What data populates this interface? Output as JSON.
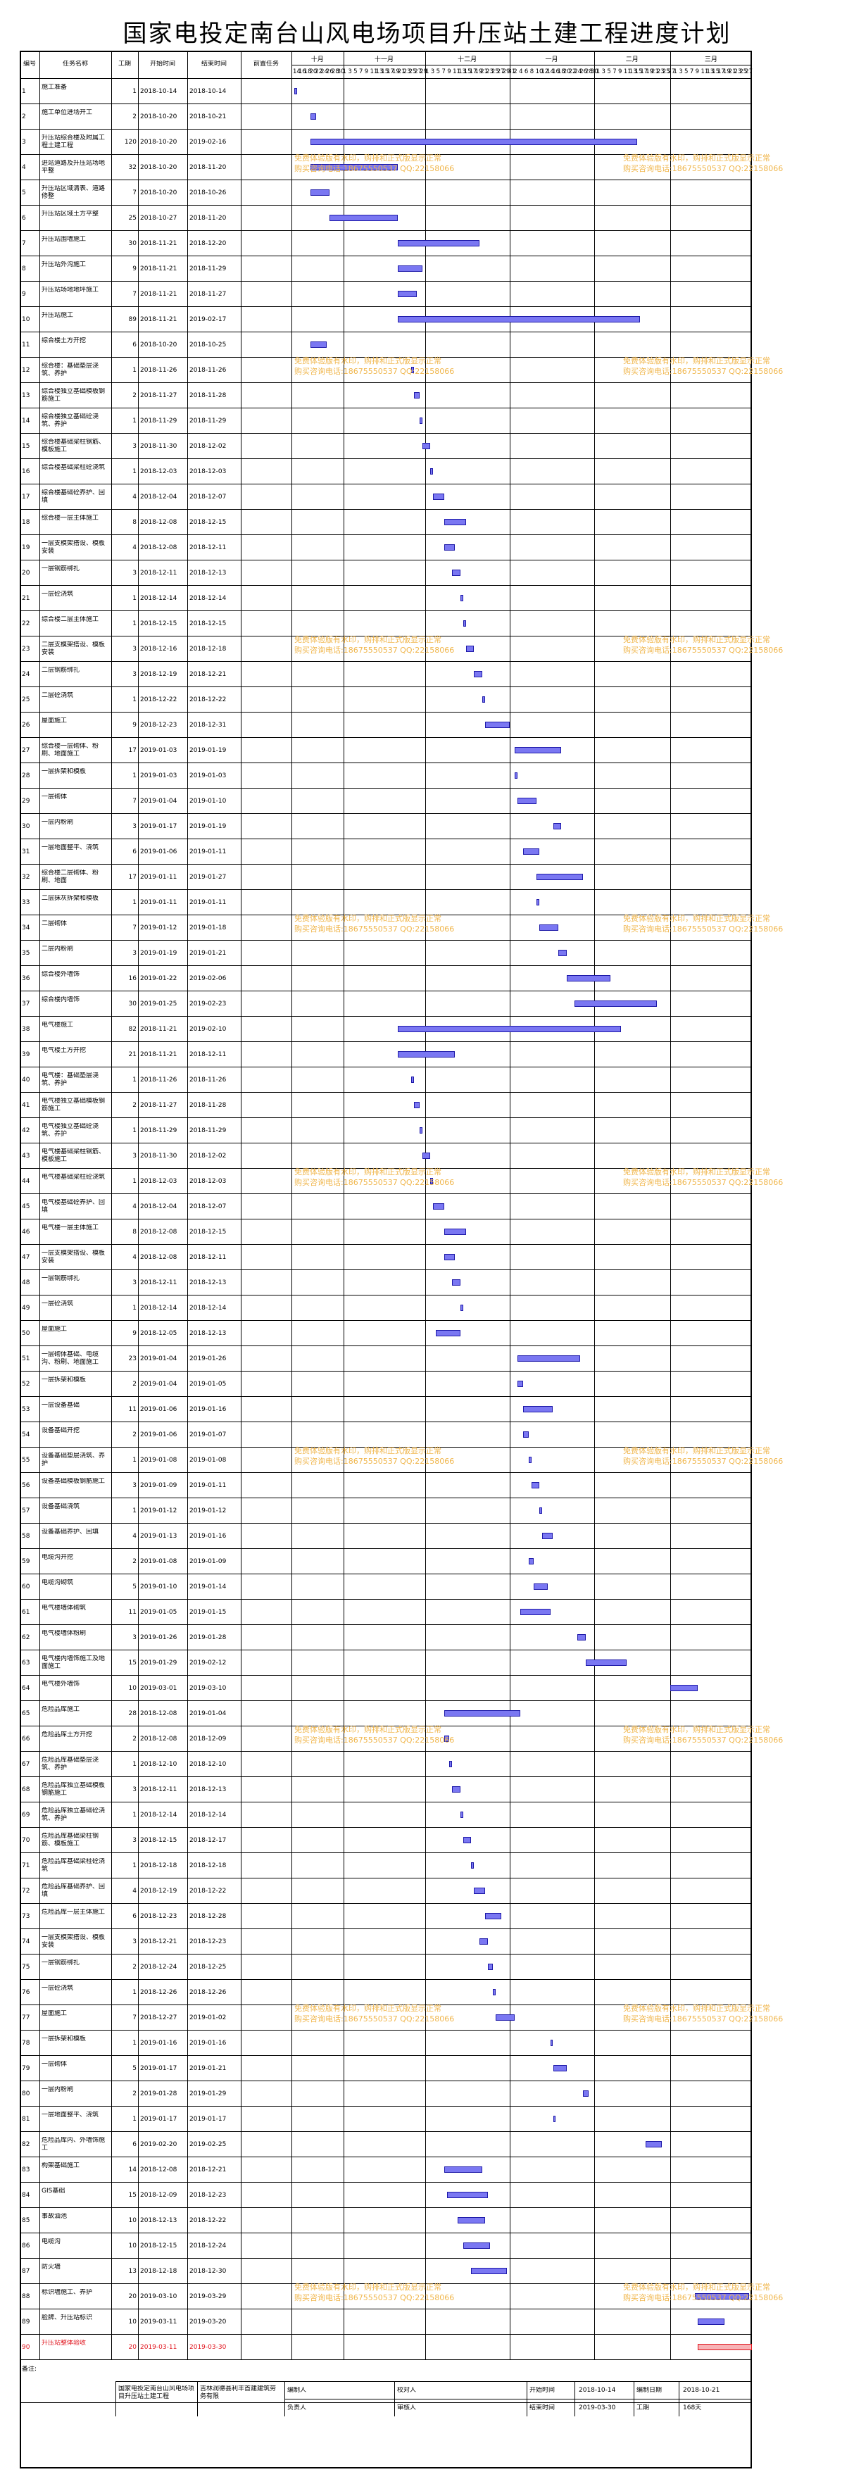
{
  "title": "国家电投定南台山风电场项目升压站土建工程进度计划",
  "headers": {
    "id": "编号",
    "name": "任务名称",
    "duration": "工期",
    "start": "开始时间",
    "end": "结束时间",
    "pred": "前置任务"
  },
  "timeline": {
    "months": [
      "十月",
      "十一月",
      "十二月",
      "一月",
      "二月",
      "三月"
    ],
    "days": [
      "14",
      "16",
      "18",
      "20",
      "22",
      "24",
      "26",
      "28",
      "30",
      "1",
      "3",
      "5",
      "7",
      "9",
      "11",
      "13",
      "15",
      "17",
      "19",
      "21",
      "23",
      "25",
      "27",
      "29",
      "1",
      "3",
      "5",
      "7",
      "9",
      "11",
      "13",
      "15",
      "17",
      "19",
      "21",
      "23",
      "25",
      "27",
      "29",
      "31",
      "2",
      "4",
      "6",
      "8",
      "10",
      "12",
      "14",
      "16",
      "18",
      "20",
      "22",
      "24",
      "26",
      "28",
      "30",
      "1",
      "3",
      "5",
      "7",
      "9",
      "11",
      "13",
      "15",
      "17",
      "19",
      "21",
      "23",
      "25",
      "27",
      "1",
      "3",
      "5",
      "7",
      "9",
      "11",
      "13",
      "15",
      "17",
      "19",
      "21",
      "23",
      "25",
      "27"
    ]
  },
  "watermark": {
    "line1": "免费体验版有水印，购排和正式版显示正常",
    "line2": "购买咨询电话:18675550537 QQ:22158066"
  },
  "tasks": [
    {
      "id": "1",
      "name": "施工准备",
      "dur": "1",
      "start": "2018-10-14",
      "end": "2018-10-14"
    },
    {
      "id": "2",
      "name": "施工单位进场开工",
      "dur": "2",
      "start": "2018-10-20",
      "end": "2018-10-21"
    },
    {
      "id": "3",
      "name": "升压站综合楼及附属工程土建工程",
      "dur": "120",
      "start": "2018-10-20",
      "end": "2019-02-16"
    },
    {
      "id": "4",
      "name": "进站道路及升压站场地平整",
      "dur": "32",
      "start": "2018-10-20",
      "end": "2018-11-20"
    },
    {
      "id": "5",
      "name": "升压站区域清表、道路修整",
      "dur": "7",
      "start": "2018-10-20",
      "end": "2018-10-26"
    },
    {
      "id": "6",
      "name": "升压站区域土方平整",
      "dur": "25",
      "start": "2018-10-27",
      "end": "2018-11-20"
    },
    {
      "id": "7",
      "name": "升压站围墙施工",
      "dur": "30",
      "start": "2018-11-21",
      "end": "2018-12-20"
    },
    {
      "id": "8",
      "name": "升压站外沟施工",
      "dur": "9",
      "start": "2018-11-21",
      "end": "2018-11-29"
    },
    {
      "id": "9",
      "name": "升压站场地地坪施工",
      "dur": "7",
      "start": "2018-11-21",
      "end": "2018-11-27"
    },
    {
      "id": "10",
      "name": "升压站施工",
      "dur": "89",
      "start": "2018-11-21",
      "end": "2019-02-17"
    },
    {
      "id": "11",
      "name": "综合楼土方开挖",
      "dur": "6",
      "start": "2018-10-20",
      "end": "2018-10-25"
    },
    {
      "id": "12",
      "name": "综合楼：基础垫层浇筑、养护",
      "dur": "1",
      "start": "2018-11-26",
      "end": "2018-11-26"
    },
    {
      "id": "13",
      "name": "综合楼独立基础模板钢筋施工",
      "dur": "2",
      "start": "2018-11-27",
      "end": "2018-11-28"
    },
    {
      "id": "14",
      "name": "综合楼独立基础砼浇筑、养护",
      "dur": "1",
      "start": "2018-11-29",
      "end": "2018-11-29"
    },
    {
      "id": "15",
      "name": "综合楼基础梁柱钢筋、模板施工",
      "dur": "3",
      "start": "2018-11-30",
      "end": "2018-12-02"
    },
    {
      "id": "16",
      "name": "综合楼基础梁柱砼浇筑",
      "dur": "1",
      "start": "2018-12-03",
      "end": "2018-12-03"
    },
    {
      "id": "17",
      "name": "综合楼基础砼养护、回填",
      "dur": "4",
      "start": "2018-12-04",
      "end": "2018-12-07"
    },
    {
      "id": "18",
      "name": "综合楼一层主体施工",
      "dur": "8",
      "start": "2018-12-08",
      "end": "2018-12-15"
    },
    {
      "id": "19",
      "name": "一层支模架搭设、模板安装",
      "dur": "4",
      "start": "2018-12-08",
      "end": "2018-12-11"
    },
    {
      "id": "20",
      "name": "一层钢筋绑扎",
      "dur": "3",
      "start": "2018-12-11",
      "end": "2018-12-13"
    },
    {
      "id": "21",
      "name": "一层砼浇筑",
      "dur": "1",
      "start": "2018-12-14",
      "end": "2018-12-14"
    },
    {
      "id": "22",
      "name": "综合楼二层主体施工",
      "dur": "1",
      "start": "2018-12-15",
      "end": "2018-12-15"
    },
    {
      "id": "23",
      "name": "二层支模架搭设、模板安装",
      "dur": "3",
      "start": "2018-12-16",
      "end": "2018-12-18"
    },
    {
      "id": "24",
      "name": "二层钢筋绑扎",
      "dur": "3",
      "start": "2018-12-19",
      "end": "2018-12-21"
    },
    {
      "id": "25",
      "name": "二层砼浇筑",
      "dur": "1",
      "start": "2018-12-22",
      "end": "2018-12-22"
    },
    {
      "id": "26",
      "name": "屋面施工",
      "dur": "9",
      "start": "2018-12-23",
      "end": "2018-12-31"
    },
    {
      "id": "27",
      "name": "综合楼一层砌体、粉刷、地面施工",
      "dur": "17",
      "start": "2019-01-03",
      "end": "2019-01-19"
    },
    {
      "id": "28",
      "name": "一层拆架和模板",
      "dur": "1",
      "start": "2019-01-03",
      "end": "2019-01-03"
    },
    {
      "id": "29",
      "name": "一层砌体",
      "dur": "7",
      "start": "2019-01-04",
      "end": "2019-01-10"
    },
    {
      "id": "30",
      "name": "一层内粉刷",
      "dur": "3",
      "start": "2019-01-17",
      "end": "2019-01-19"
    },
    {
      "id": "31",
      "name": "一层地面整平、浇筑",
      "dur": "6",
      "start": "2019-01-06",
      "end": "2019-01-11"
    },
    {
      "id": "32",
      "name": "综合楼二层砌体、粉刷、地面",
      "dur": "17",
      "start": "2019-01-11",
      "end": "2019-01-27"
    },
    {
      "id": "33",
      "name": "二层抹灰拆架和模板",
      "dur": "1",
      "start": "2019-01-11",
      "end": "2019-01-11"
    },
    {
      "id": "34",
      "name": "二层砌体",
      "dur": "7",
      "start": "2019-01-12",
      "end": "2019-01-18"
    },
    {
      "id": "35",
      "name": "二层内粉刷",
      "dur": "3",
      "start": "2019-01-19",
      "end": "2019-01-21"
    },
    {
      "id": "36",
      "name": "综合楼外墙饰",
      "dur": "16",
      "start": "2019-01-22",
      "end": "2019-02-06"
    },
    {
      "id": "37",
      "name": "综合楼内墙饰",
      "dur": "30",
      "start": "2019-01-25",
      "end": "2019-02-23"
    },
    {
      "id": "38",
      "name": "电气楼施工",
      "dur": "82",
      "start": "2018-11-21",
      "end": "2019-02-10"
    },
    {
      "id": "39",
      "name": "电气楼土方开挖",
      "dur": "21",
      "start": "2018-11-21",
      "end": "2018-12-11"
    },
    {
      "id": "40",
      "name": "电气楼：基础垫层浇筑、养护",
      "dur": "1",
      "start": "2018-11-26",
      "end": "2018-11-26"
    },
    {
      "id": "41",
      "name": "电气楼独立基础模板钢筋施工",
      "dur": "2",
      "start": "2018-11-27",
      "end": "2018-11-28"
    },
    {
      "id": "42",
      "name": "电气楼独立基础砼浇筑、养护",
      "dur": "1",
      "start": "2018-11-29",
      "end": "2018-11-29"
    },
    {
      "id": "43",
      "name": "电气楼基础梁柱钢筋、模板施工",
      "dur": "3",
      "start": "2018-11-30",
      "end": "2018-12-02"
    },
    {
      "id": "44",
      "name": "电气楼基础梁柱砼浇筑",
      "dur": "1",
      "start": "2018-12-03",
      "end": "2018-12-03"
    },
    {
      "id": "45",
      "name": "电气楼基础砼养护、回填",
      "dur": "4",
      "start": "2018-12-04",
      "end": "2018-12-07"
    },
    {
      "id": "46",
      "name": "电气楼一层主体施工",
      "dur": "8",
      "start": "2018-12-08",
      "end": "2018-12-15"
    },
    {
      "id": "47",
      "name": "一层支模架搭设、模板安装",
      "dur": "4",
      "start": "2018-12-08",
      "end": "2018-12-11"
    },
    {
      "id": "48",
      "name": "一层钢筋绑扎",
      "dur": "3",
      "start": "2018-12-11",
      "end": "2018-12-13"
    },
    {
      "id": "49",
      "name": "一层砼浇筑",
      "dur": "1",
      "start": "2018-12-14",
      "end": "2018-12-14"
    },
    {
      "id": "50",
      "name": "屋面施工",
      "dur": "9",
      "start": "2018-12-05",
      "end": "2018-12-13"
    },
    {
      "id": "51",
      "name": "一层砌体基础、电缆沟、粉刷、地面施工",
      "dur": "23",
      "start": "2019-01-04",
      "end": "2019-01-26"
    },
    {
      "id": "52",
      "name": "一层拆架和模板",
      "dur": "2",
      "start": "2019-01-04",
      "end": "2019-01-05"
    },
    {
      "id": "53",
      "name": "一层设备基础",
      "dur": "11",
      "start": "2019-01-06",
      "end": "2019-01-16"
    },
    {
      "id": "54",
      "name": "设备基础开挖",
      "dur": "2",
      "start": "2019-01-06",
      "end": "2019-01-07"
    },
    {
      "id": "55",
      "name": "设备基础垫层浇筑、养护",
      "dur": "1",
      "start": "2019-01-08",
      "end": "2019-01-08"
    },
    {
      "id": "56",
      "name": "设备基础模板钢筋施工",
      "dur": "3",
      "start": "2019-01-09",
      "end": "2019-01-11"
    },
    {
      "id": "57",
      "name": "设备基础浇筑",
      "dur": "1",
      "start": "2019-01-12",
      "end": "2019-01-12"
    },
    {
      "id": "58",
      "name": "设备基础养护、回填",
      "dur": "4",
      "start": "2019-01-13",
      "end": "2019-01-16"
    },
    {
      "id": "59",
      "name": "电缆沟开挖",
      "dur": "2",
      "start": "2019-01-08",
      "end": "2019-01-09"
    },
    {
      "id": "60",
      "name": "电缆沟砌筑",
      "dur": "5",
      "start": "2019-01-10",
      "end": "2019-01-14"
    },
    {
      "id": "61",
      "name": "电气楼墙体砌筑",
      "dur": "11",
      "start": "2019-01-05",
      "end": "2019-01-15"
    },
    {
      "id": "62",
      "name": "电气楼墙体粉刷",
      "dur": "3",
      "start": "2019-01-26",
      "end": "2019-01-28"
    },
    {
      "id": "63",
      "name": "电气楼内墙饰施工及地面施工",
      "dur": "15",
      "start": "2019-01-29",
      "end": "2019-02-12"
    },
    {
      "id": "64",
      "name": "电气楼外墙饰",
      "dur": "10",
      "start": "2019-03-01",
      "end": "2019-03-10"
    },
    {
      "id": "65",
      "name": "危险品库施工",
      "dur": "28",
      "start": "2018-12-08",
      "end": "2019-01-04"
    },
    {
      "id": "66",
      "name": "危险品库土方开挖",
      "dur": "2",
      "start": "2018-12-08",
      "end": "2018-12-09"
    },
    {
      "id": "67",
      "name": "危险品库基础垫层浇筑、养护",
      "dur": "1",
      "start": "2018-12-10",
      "end": "2018-12-10"
    },
    {
      "id": "68",
      "name": "危险品库独立基础模板钢筋施工",
      "dur": "3",
      "start": "2018-12-11",
      "end": "2018-12-13"
    },
    {
      "id": "69",
      "name": "危险品库独立基础砼浇筑、养护",
      "dur": "1",
      "start": "2018-12-14",
      "end": "2018-12-14"
    },
    {
      "id": "70",
      "name": "危险品库基础梁柱钢筋、模板施工",
      "dur": "3",
      "start": "2018-12-15",
      "end": "2018-12-17"
    },
    {
      "id": "71",
      "name": "危险品库基础梁柱砼浇筑",
      "dur": "1",
      "start": "2018-12-18",
      "end": "2018-12-18"
    },
    {
      "id": "72",
      "name": "危险品库基础养护、回填",
      "dur": "4",
      "start": "2018-12-19",
      "end": "2018-12-22"
    },
    {
      "id": "73",
      "name": "危险品库一层主体施工",
      "dur": "6",
      "start": "2018-12-23",
      "end": "2018-12-28"
    },
    {
      "id": "74",
      "name": "一层支模架搭设、模板安装",
      "dur": "3",
      "start": "2018-12-21",
      "end": "2018-12-23"
    },
    {
      "id": "75",
      "name": "一层钢筋绑扎",
      "dur": "2",
      "start": "2018-12-24",
      "end": "2018-12-25"
    },
    {
      "id": "76",
      "name": "一层砼浇筑",
      "dur": "1",
      "start": "2018-12-26",
      "end": "2018-12-26"
    },
    {
      "id": "77",
      "name": "屋面施工",
      "dur": "7",
      "start": "2018-12-27",
      "end": "2019-01-02"
    },
    {
      "id": "78",
      "name": "一层拆架和模板",
      "dur": "1",
      "start": "2019-01-16",
      "end": "2019-01-16"
    },
    {
      "id": "79",
      "name": "一层砌体",
      "dur": "5",
      "start": "2019-01-17",
      "end": "2019-01-21"
    },
    {
      "id": "80",
      "name": "一层内粉刷",
      "dur": "2",
      "start": "2019-01-28",
      "end": "2019-01-29"
    },
    {
      "id": "81",
      "name": "一层地面整平、浇筑",
      "dur": "1",
      "start": "2019-01-17",
      "end": "2019-01-17"
    },
    {
      "id": "82",
      "name": "危险品库内、外墙饰施工",
      "dur": "6",
      "start": "2019-02-20",
      "end": "2019-02-25"
    },
    {
      "id": "83",
      "name": "构架基础施工",
      "dur": "14",
      "start": "2018-12-08",
      "end": "2018-12-21"
    },
    {
      "id": "84",
      "name": "GIS基础",
      "dur": "15",
      "start": "2018-12-09",
      "end": "2018-12-23"
    },
    {
      "id": "85",
      "name": "事故油池",
      "dur": "10",
      "start": "2018-12-13",
      "end": "2018-12-22"
    },
    {
      "id": "86",
      "name": "电缆沟",
      "dur": "10",
      "start": "2018-12-15",
      "end": "2018-12-24"
    },
    {
      "id": "87",
      "name": "防火墙",
      "dur": "13",
      "start": "2018-12-18",
      "end": "2018-12-30"
    },
    {
      "id": "88",
      "name": "标识墙施工、养护",
      "dur": "20",
      "start": "2019-03-10",
      "end": "2019-03-29"
    },
    {
      "id": "89",
      "name": "脸牌、升压站标识",
      "dur": "10",
      "start": "2019-03-11",
      "end": "2019-03-20"
    },
    {
      "id": "90",
      "name": "升压站整体验收",
      "dur": "20",
      "start": "2019-03-11",
      "end": "2019-03-30",
      "highlight": true
    }
  ],
  "footer": {
    "remark_label": "备注:",
    "project_name": "国家电投定南台山风电场项目升压站土建工程",
    "company": "吉林润德县利丰首建建筑劳务有限",
    "compiler_label": "编制人",
    "reviewer_label": "校对人",
    "charge_label": "负责人",
    "auditor_label": "审核人",
    "start_label": "开始时间",
    "start_value": "2018-10-14",
    "end_label": "结束时间",
    "end_value": "2019-03-30",
    "date_label": "编制日期",
    "date_value": "2018-10-21",
    "period_label": "工期",
    "period_value": "168天"
  }
}
